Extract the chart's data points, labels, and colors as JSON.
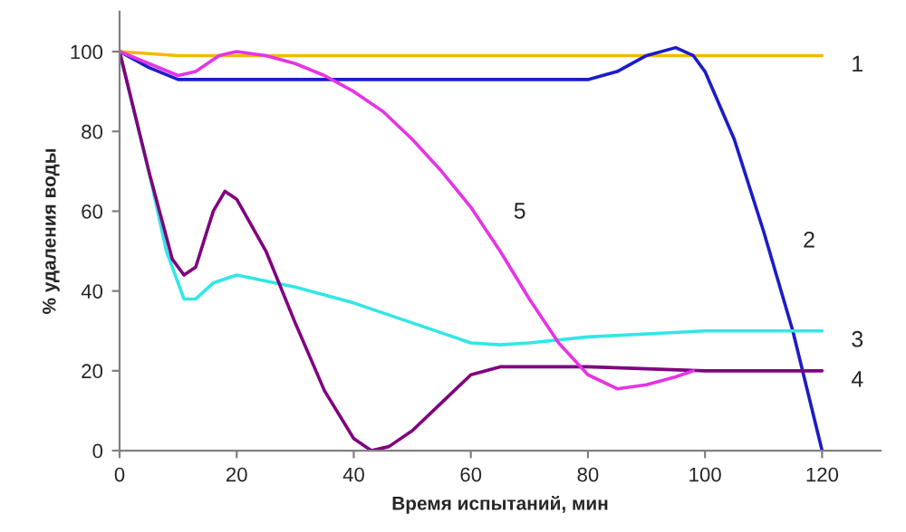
{
  "chart_data": {
    "type": "line",
    "xlabel": "Время испытаний, мин",
    "ylabel": "% удаления воды",
    "xlim": [
      0,
      130
    ],
    "ylim": [
      0,
      110
    ],
    "xticks": [
      0,
      20,
      40,
      60,
      80,
      100,
      120
    ],
    "yticks": [
      0,
      20,
      40,
      60,
      80,
      100
    ],
    "grid": false,
    "legend": false,
    "marker": "none",
    "line_style": "solid",
    "series": [
      {
        "name": "1",
        "color": "#f5b800",
        "x": [
          0,
          10,
          120
        ],
        "values": [
          100,
          99,
          99
        ]
      },
      {
        "name": "2",
        "color": "#1c1cc8",
        "x": [
          0,
          5,
          10,
          20,
          40,
          60,
          80,
          85,
          90,
          95,
          98,
          100,
          105,
          110,
          115,
          120
        ],
        "values": [
          100,
          96,
          93,
          93,
          93,
          93,
          93,
          95,
          99,
          101,
          99,
          95,
          78,
          55,
          30,
          0
        ]
      },
      {
        "name": "3",
        "color": "#33e6e6",
        "x": [
          0,
          5,
          8,
          11,
          13,
          16,
          20,
          30,
          40,
          50,
          60,
          65,
          70,
          80,
          100,
          120
        ],
        "values": [
          100,
          70,
          50,
          38,
          38,
          42,
          44,
          41,
          37,
          32,
          27,
          26.5,
          27,
          28.5,
          30,
          30
        ]
      },
      {
        "name": "4",
        "color": "#800080",
        "x": [
          0,
          5,
          9,
          11,
          13,
          16,
          18,
          20,
          25,
          30,
          35,
          40,
          43,
          46,
          50,
          55,
          60,
          65,
          80,
          100,
          120
        ],
        "values": [
          100,
          70,
          48,
          44,
          46,
          60,
          65,
          63,
          50,
          32,
          15,
          3,
          0,
          1,
          5,
          12,
          19,
          21,
          21,
          20,
          20
        ]
      },
      {
        "name": "5",
        "color": "#e633e6",
        "x": [
          0,
          5,
          10,
          13,
          17,
          20,
          25,
          30,
          35,
          40,
          45,
          50,
          55,
          60,
          65,
          70,
          75,
          80,
          85,
          90,
          95,
          98
        ],
        "values": [
          100,
          97,
          94,
          95,
          99,
          100,
          99,
          97,
          94,
          90,
          85,
          78,
          70,
          61,
          50,
          38,
          27,
          19,
          15.5,
          16.5,
          18.5,
          20
        ]
      }
    ]
  }
}
